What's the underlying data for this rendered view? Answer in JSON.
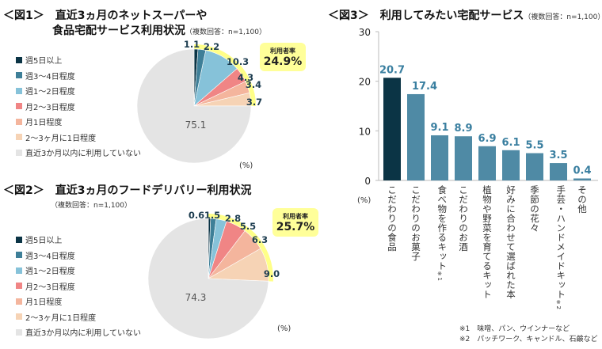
{
  "colors": {
    "c1": "#0b3445",
    "c2": "#3e7f98",
    "c3": "#86c2d9",
    "c4": "#f08585",
    "c5": "#f4b59d",
    "c6": "#f6d3b5",
    "c7": "#e4e4e4",
    "highlight": "#ffff88",
    "bar_dark": "#0b3445",
    "bar": "#4f8aa5",
    "value_text": "#3a7fa0"
  },
  "chart_data": [
    {
      "type": "pie",
      "title": "＜図1＞　直近3ヵ月のネットスーパーや",
      "title2": "食品宅配サービス利用状況",
      "note": "（複数回答：n=1,100）",
      "unit": "(%)",
      "categories": [
        "週5日以上",
        "週3～4日程度",
        "週1～2日程度",
        "月2～3日程度",
        "月1日程度",
        "2～3ヶ月に1日程度",
        "直近3か月以内に利用していない"
      ],
      "values": [
        1.1,
        2.2,
        10.3,
        4.3,
        3.4,
        3.7,
        75.1
      ],
      "value_labels": [
        "1.1",
        "2.2",
        "10.3",
        "4.3",
        "3.4",
        "3.7",
        "75.1"
      ],
      "callout": {
        "label": "利用者率",
        "value": "24.9%"
      },
      "legend": "left"
    },
    {
      "type": "pie",
      "title": "＜図2＞　直近3ヵ月のフードデリバリー利用状況",
      "note": "（複数回答：n=1,100）",
      "unit": "(%)",
      "categories": [
        "週5日以上",
        "週3～4日程度",
        "週1～2日程度",
        "月2～3日程度",
        "月1日程度",
        "2～3ヶ月に1日程度",
        "直近3か月以内に利用していない"
      ],
      "values": [
        0.6,
        1.5,
        2.8,
        5.5,
        6.3,
        9.0,
        74.3
      ],
      "value_labels": [
        "0.6",
        "1.5",
        "2.8",
        "5.5",
        "6.3",
        "9.0",
        "74.3"
      ],
      "callout": {
        "label": "利用者率",
        "value": "25.7%"
      },
      "legend": "left"
    },
    {
      "type": "bar",
      "title": "＜図3＞　利用してみたい宅配サービス",
      "note": "（複数回答：n=1,100）",
      "ylabel": "(%)",
      "ylim": [
        0,
        30
      ],
      "yticks": [
        "0",
        "10",
        "20",
        "30"
      ],
      "categories": [
        "こだわりの食品",
        "こだわりのお菓子",
        "食べ物を作るキット",
        "こだわりのお酒",
        "植物や野菜を育てるキット",
        "好みに合わせて選ばれた本",
        "季節の花々",
        "手芸・ハンドメイドキット",
        "その他"
      ],
      "category_marks": [
        "",
        "",
        "※1",
        "",
        "",
        "",
        "",
        "※2",
        ""
      ],
      "values": [
        20.7,
        17.4,
        9.1,
        8.9,
        6.9,
        6.1,
        5.5,
        3.5,
        0.4
      ],
      "value_labels": [
        "20.7",
        "17.4",
        "9.1",
        "8.9",
        "6.9",
        "6.1",
        "5.5",
        "3.5",
        "0.4"
      ],
      "footnotes": [
        "※1　味噌、パン、ウインナーなど",
        "※2　パッチワーク、キャンドル、石鹸など"
      ]
    }
  ]
}
